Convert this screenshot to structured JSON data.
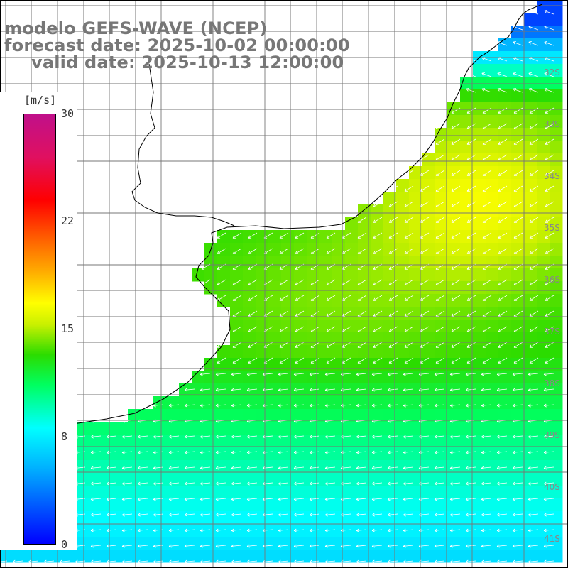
{
  "title": {
    "line1": "modelo GEFS-WAVE (NCEP)",
    "line2": "forecast date: 2025-10-02 00:00:00",
    "line3": "valid date: 2025-10-13 12:00:00"
  },
  "colorbar": {
    "unit": "[m/s]",
    "ticks": [
      {
        "label": "30",
        "value": 30
      },
      {
        "label": "22",
        "value": 22
      },
      {
        "label": "15",
        "value": 15
      },
      {
        "label": "8",
        "value": 8
      },
      {
        "label": "0",
        "value": 0
      }
    ],
    "range": [
      0,
      30
    ],
    "colors": [
      "#0000ff",
      "#00b4ff",
      "#00ffff",
      "#00ff60",
      "#2bdc00",
      "#c8f000",
      "#ffff00",
      "#ffb000",
      "#ff6a00",
      "#ff0000",
      "#e01060",
      "#c0108a"
    ]
  },
  "latitude_labels": [
    "32S",
    "33S",
    "34S",
    "35S",
    "36S",
    "37S",
    "38S",
    "39S",
    "40S",
    "41S"
  ],
  "colors": {
    "land": "#ffffff",
    "coastline": "#000000",
    "grid": "#777777",
    "arrows": "#ffffff",
    "title": "#777777"
  }
}
